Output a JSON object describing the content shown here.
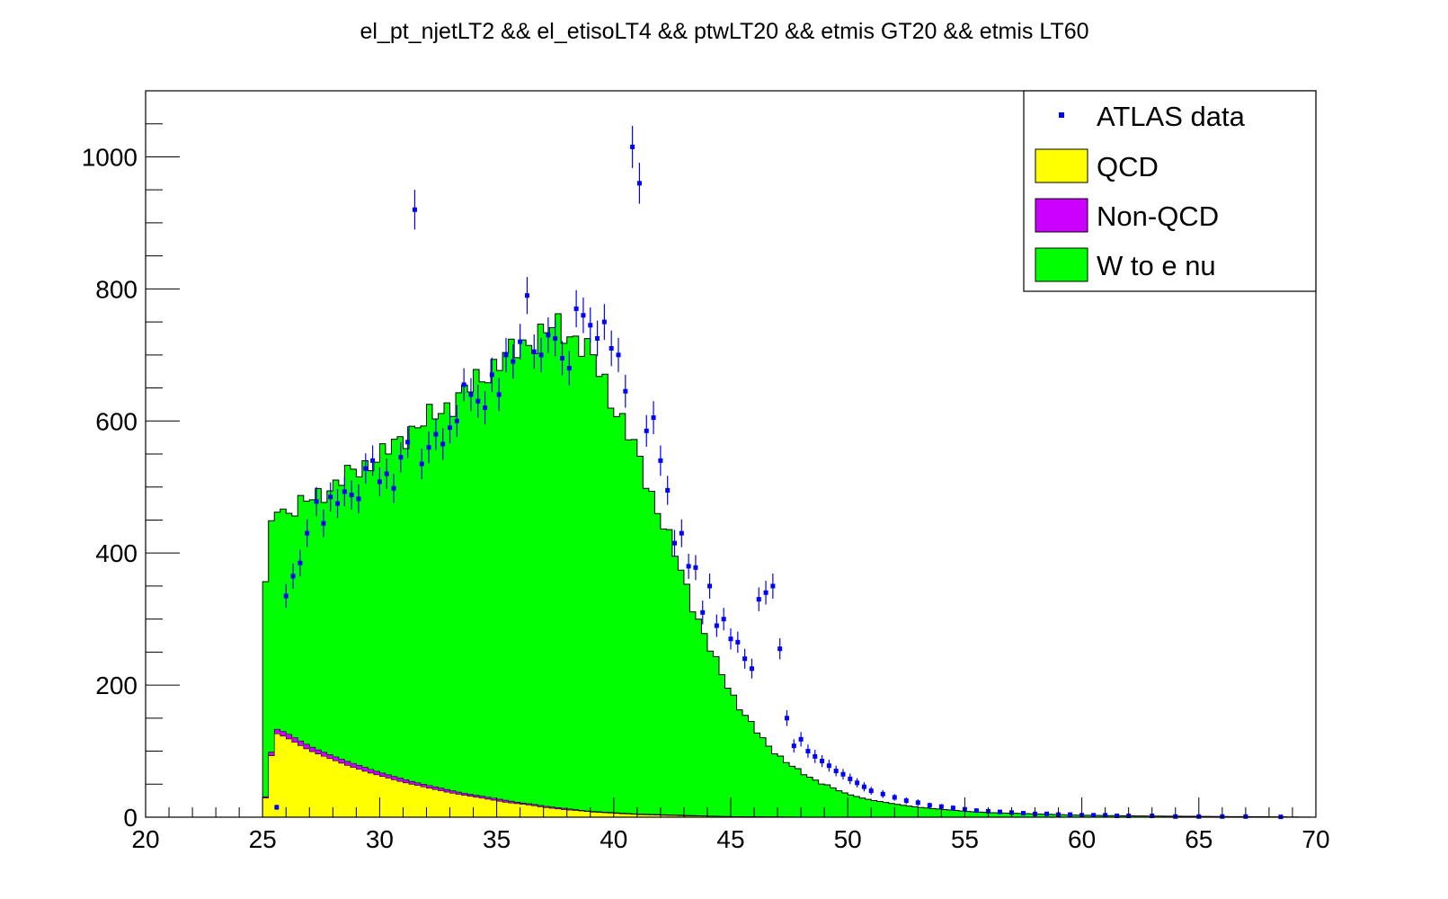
{
  "chart_data": {
    "type": "histogram-stack",
    "title": "el_pt_njetLT2 && el_etisoLT4 && ptwLT20 && etmis GT20 && etmis LT60",
    "xlabel": "",
    "ylabel": "",
    "xlim": [
      20,
      70
    ],
    "ylim": [
      0,
      1100
    ],
    "xticks": [
      20,
      25,
      30,
      35,
      40,
      45,
      50,
      55,
      60,
      65,
      70
    ],
    "yticks": [
      0,
      200,
      400,
      600,
      800,
      1000
    ],
    "bin_width": 0.25,
    "legend_position": "top-right",
    "legend": [
      {
        "label": "ATLAS data",
        "style": "marker",
        "color": "#0000ff"
      },
      {
        "label": "QCD",
        "style": "fill",
        "color": "#ffff00"
      },
      {
        "label": "Non-QCD",
        "style": "fill",
        "color": "#cc00ff"
      },
      {
        "label": "W to e nu",
        "style": "fill",
        "color": "#00ff00"
      }
    ],
    "stack_total": [
      [
        25.0,
        310
      ],
      [
        25.5,
        480
      ],
      [
        26.0,
        460
      ],
      [
        26.5,
        470
      ],
      [
        27.0,
        480
      ],
      [
        27.5,
        490
      ],
      [
        28.0,
        500
      ],
      [
        28.5,
        515
      ],
      [
        29.0,
        525
      ],
      [
        29.5,
        535
      ],
      [
        30.0,
        545
      ],
      [
        30.5,
        560
      ],
      [
        31.0,
        575
      ],
      [
        31.5,
        590
      ],
      [
        32.0,
        600
      ],
      [
        32.5,
        612
      ],
      [
        33.0,
        625
      ],
      [
        33.5,
        640
      ],
      [
        34.0,
        655
      ],
      [
        34.5,
        670
      ],
      [
        35.0,
        688
      ],
      [
        35.5,
        700
      ],
      [
        36.0,
        712
      ],
      [
        36.5,
        722
      ],
      [
        37.0,
        733
      ],
      [
        37.5,
        742
      ],
      [
        38.0,
        735
      ],
      [
        38.5,
        722
      ],
      [
        39.0,
        700
      ],
      [
        39.5,
        668
      ],
      [
        40.0,
        625
      ],
      [
        40.5,
        590
      ],
      [
        41.0,
        550
      ],
      [
        41.5,
        500
      ],
      [
        42.0,
        455
      ],
      [
        42.5,
        410
      ],
      [
        43.0,
        360
      ],
      [
        43.5,
        310
      ],
      [
        44.0,
        265
      ],
      [
        44.5,
        225
      ],
      [
        45.0,
        190
      ],
      [
        45.5,
        160
      ],
      [
        46.0,
        135
      ],
      [
        46.5,
        112
      ],
      [
        47.0,
        95
      ],
      [
        47.5,
        80
      ],
      [
        48.0,
        68
      ],
      [
        48.5,
        58
      ],
      [
        49.0,
        50
      ],
      [
        49.5,
        42
      ],
      [
        50.0,
        35
      ],
      [
        50.5,
        30
      ],
      [
        51.0,
        26
      ],
      [
        52.0,
        20
      ],
      [
        53.0,
        15
      ],
      [
        54.0,
        12
      ],
      [
        55.0,
        9
      ],
      [
        56.0,
        7
      ],
      [
        57.0,
        6
      ],
      [
        58.0,
        5
      ],
      [
        59.0,
        4
      ],
      [
        60.0,
        3
      ],
      [
        62.0,
        2
      ],
      [
        64.0,
        1.5
      ],
      [
        66.0,
        1
      ],
      [
        68.0,
        0.6
      ],
      [
        69.0,
        0.4
      ],
      [
        70.0,
        0
      ]
    ],
    "qcd_plus_nonqcd": [
      [
        25.0,
        0
      ],
      [
        25.25,
        62
      ],
      [
        25.5,
        135
      ],
      [
        26.0,
        128
      ],
      [
        26.5,
        118
      ],
      [
        27.0,
        108
      ],
      [
        27.5,
        100
      ],
      [
        28.0,
        93
      ],
      [
        28.5,
        86
      ],
      [
        29.0,
        80
      ],
      [
        29.5,
        74
      ],
      [
        30.0,
        68
      ],
      [
        30.5,
        63
      ],
      [
        31.0,
        58
      ],
      [
        31.5,
        53
      ],
      [
        32.0,
        49
      ],
      [
        32.5,
        45
      ],
      [
        33.0,
        41
      ],
      [
        33.5,
        37
      ],
      [
        34.0,
        34
      ],
      [
        34.5,
        31
      ],
      [
        35.0,
        28
      ],
      [
        35.5,
        25
      ],
      [
        36.0,
        22
      ],
      [
        36.5,
        20
      ],
      [
        37.0,
        17
      ],
      [
        37.5,
        15
      ],
      [
        38.0,
        13
      ],
      [
        38.5,
        11
      ],
      [
        39.0,
        9
      ],
      [
        39.5,
        8
      ],
      [
        40.0,
        7
      ],
      [
        41.0,
        5
      ],
      [
        42.0,
        4
      ],
      [
        43.0,
        3
      ],
      [
        44.0,
        2
      ],
      [
        45.0,
        1
      ],
      [
        47.0,
        0.5
      ],
      [
        50.0,
        0
      ]
    ],
    "qcd": [
      [
        25.0,
        0
      ],
      [
        25.25,
        58
      ],
      [
        25.5,
        128
      ],
      [
        26.0,
        121
      ],
      [
        26.5,
        111
      ],
      [
        27.0,
        101
      ],
      [
        27.5,
        94
      ],
      [
        28.0,
        87
      ],
      [
        28.5,
        80
      ],
      [
        29.0,
        74
      ],
      [
        29.5,
        68
      ],
      [
        30.0,
        63
      ],
      [
        30.5,
        58
      ],
      [
        31.0,
        53
      ],
      [
        31.5,
        49
      ],
      [
        32.0,
        45
      ],
      [
        32.5,
        41
      ],
      [
        33.0,
        37
      ],
      [
        33.5,
        34
      ],
      [
        34.0,
        31
      ],
      [
        34.5,
        28
      ],
      [
        35.0,
        25
      ],
      [
        35.5,
        22
      ],
      [
        36.0,
        20
      ],
      [
        36.5,
        18
      ],
      [
        37.0,
        15
      ],
      [
        37.5,
        13
      ],
      [
        38.0,
        11
      ],
      [
        38.5,
        10
      ],
      [
        39.0,
        8
      ],
      [
        39.5,
        7
      ],
      [
        40.0,
        6
      ],
      [
        41.0,
        4
      ],
      [
        42.0,
        3
      ],
      [
        43.0,
        2
      ],
      [
        44.0,
        1.5
      ],
      [
        45.0,
        1
      ],
      [
        47.0,
        0.4
      ],
      [
        50.0,
        0
      ]
    ],
    "data_points": [
      [
        25.6,
        15,
        4
      ],
      [
        26.0,
        335,
        18
      ],
      [
        26.3,
        365,
        19
      ],
      [
        26.6,
        385,
        20
      ],
      [
        26.9,
        430,
        21
      ],
      [
        27.3,
        478,
        22
      ],
      [
        27.6,
        445,
        21
      ],
      [
        27.9,
        485,
        22
      ],
      [
        28.2,
        475,
        22
      ],
      [
        28.5,
        493,
        22
      ],
      [
        28.8,
        488,
        22
      ],
      [
        29.1,
        482,
        22
      ],
      [
        29.4,
        528,
        23
      ],
      [
        29.7,
        540,
        23
      ],
      [
        30.0,
        508,
        22
      ],
      [
        30.3,
        520,
        23
      ],
      [
        30.6,
        498,
        22
      ],
      [
        30.9,
        545,
        23
      ],
      [
        31.2,
        568,
        24
      ],
      [
        31.5,
        920,
        30
      ],
      [
        31.8,
        535,
        23
      ],
      [
        32.1,
        560,
        24
      ],
      [
        32.4,
        580,
        24
      ],
      [
        32.7,
        565,
        24
      ],
      [
        33.0,
        590,
        24
      ],
      [
        33.3,
        600,
        24
      ],
      [
        33.6,
        655,
        25
      ],
      [
        33.9,
        640,
        25
      ],
      [
        34.2,
        630,
        25
      ],
      [
        34.5,
        620,
        25
      ],
      [
        34.8,
        670,
        26
      ],
      [
        35.1,
        640,
        25
      ],
      [
        35.4,
        700,
        26
      ],
      [
        35.7,
        690,
        26
      ],
      [
        36.0,
        720,
        27
      ],
      [
        36.3,
        790,
        28
      ],
      [
        36.6,
        705,
        26
      ],
      [
        36.9,
        700,
        26
      ],
      [
        37.2,
        730,
        27
      ],
      [
        37.5,
        725,
        27
      ],
      [
        37.8,
        695,
        26
      ],
      [
        38.1,
        680,
        26
      ],
      [
        38.4,
        770,
        28
      ],
      [
        38.7,
        760,
        27
      ],
      [
        39.0,
        745,
        27
      ],
      [
        39.3,
        725,
        27
      ],
      [
        39.6,
        750,
        27
      ],
      [
        39.9,
        710,
        27
      ],
      [
        40.2,
        700,
        26
      ],
      [
        40.5,
        645,
        25
      ],
      [
        40.8,
        1015,
        32
      ],
      [
        41.1,
        960,
        31
      ],
      [
        41.4,
        585,
        24
      ],
      [
        41.7,
        605,
        25
      ],
      [
        42.0,
        540,
        23
      ],
      [
        42.3,
        495,
        22
      ],
      [
        42.6,
        415,
        20
      ],
      [
        42.9,
        430,
        21
      ],
      [
        43.2,
        380,
        19
      ],
      [
        43.5,
        378,
        19
      ],
      [
        43.8,
        310,
        18
      ],
      [
        44.1,
        350,
        19
      ],
      [
        44.4,
        290,
        17
      ],
      [
        44.7,
        300,
        17
      ],
      [
        45.0,
        270,
        16
      ],
      [
        45.3,
        265,
        16
      ],
      [
        45.6,
        240,
        15
      ],
      [
        45.9,
        225,
        15
      ],
      [
        46.2,
        330,
        18
      ],
      [
        46.5,
        340,
        18
      ],
      [
        46.8,
        350,
        19
      ],
      [
        47.1,
        255,
        16
      ],
      [
        47.4,
        150,
        12
      ],
      [
        47.7,
        108,
        10
      ],
      [
        48.0,
        118,
        11
      ],
      [
        48.3,
        100,
        10
      ],
      [
        48.6,
        92,
        10
      ],
      [
        48.9,
        85,
        9
      ],
      [
        49.2,
        78,
        9
      ],
      [
        49.5,
        70,
        8
      ],
      [
        49.8,
        65,
        8
      ],
      [
        50.1,
        58,
        8
      ],
      [
        50.4,
        52,
        7
      ],
      [
        50.7,
        46,
        7
      ],
      [
        51.0,
        40,
        6
      ],
      [
        51.5,
        35,
        6
      ],
      [
        52.0,
        30,
        5
      ],
      [
        52.5,
        25,
        5
      ],
      [
        53.0,
        22,
        5
      ],
      [
        53.5,
        18,
        4
      ],
      [
        54.0,
        16,
        4
      ],
      [
        54.5,
        14,
        4
      ],
      [
        55.0,
        12,
        3
      ],
      [
        55.5,
        10,
        3
      ],
      [
        56.0,
        9,
        3
      ],
      [
        56.5,
        8,
        3
      ],
      [
        57.0,
        7,
        3
      ],
      [
        57.5,
        6,
        2
      ],
      [
        58.0,
        5,
        2
      ],
      [
        58.5,
        5,
        2
      ],
      [
        59.0,
        4,
        2
      ],
      [
        59.5,
        4,
        2
      ],
      [
        60.0,
        3,
        2
      ],
      [
        60.5,
        3,
        2
      ],
      [
        61.0,
        3,
        2
      ],
      [
        61.5,
        2,
        1
      ],
      [
        62.0,
        2,
        1
      ],
      [
        63.0,
        2,
        1
      ],
      [
        64.0,
        1,
        1
      ],
      [
        65.0,
        1,
        1
      ],
      [
        66.0,
        1,
        1
      ],
      [
        67.0,
        1,
        1
      ],
      [
        68.5,
        0.5,
        1
      ]
    ]
  }
}
